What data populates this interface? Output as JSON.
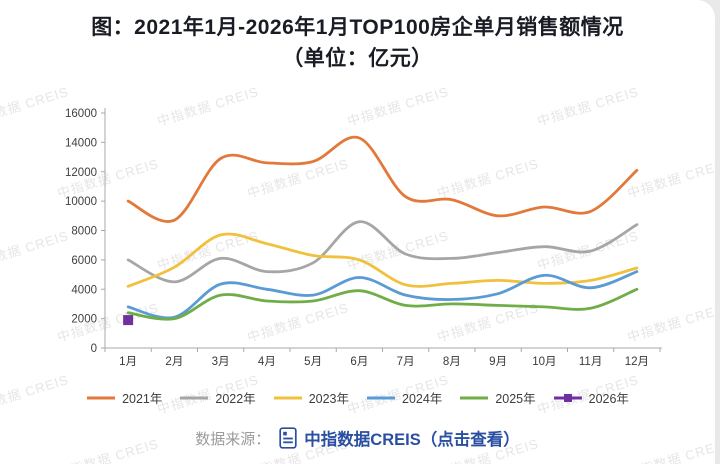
{
  "card": {
    "title_line1": "图：2021年1月-2026年1月TOP100房企单月销售额情况",
    "title_line2": "（单位：亿元）"
  },
  "watermark": {
    "text": "中指数据 CREIS"
  },
  "footer": {
    "source_label": "数据来源：",
    "link_text": "中指数据CREIS（点击查看）",
    "link_color": "#2a4fa2",
    "icon": "document-icon"
  },
  "chart_data": {
    "type": "line",
    "title": "2021年1月-2026年1月TOP100房企单月销售额情况",
    "unit": "亿元",
    "xlabel": "",
    "ylabel": "",
    "ylim": [
      0,
      16000
    ],
    "ytick_step": 2000,
    "grid": false,
    "legend_position": "bottom",
    "categories": [
      "1月",
      "2月",
      "3月",
      "4月",
      "5月",
      "6月",
      "7月",
      "8月",
      "9月",
      "10月",
      "11月",
      "12月"
    ],
    "series": [
      {
        "name": "2021年",
        "color": "#E2793A",
        "values": [
          10000,
          8700,
          12900,
          12600,
          12700,
          14300,
          10300,
          10100,
          9000,
          9600,
          9300,
          12100
        ]
      },
      {
        "name": "2022年",
        "color": "#A6A6A6",
        "values": [
          6000,
          4500,
          6100,
          5200,
          5800,
          8600,
          6400,
          6100,
          6500,
          6900,
          6600,
          8400
        ]
      },
      {
        "name": "2023年",
        "color": "#F1C13D",
        "values": [
          4200,
          5500,
          7700,
          7100,
          6300,
          6000,
          4300,
          4400,
          4600,
          4400,
          4600,
          5450
        ]
      },
      {
        "name": "2024年",
        "color": "#5B9BD5",
        "values": [
          2800,
          2100,
          4350,
          4000,
          3600,
          4800,
          3600,
          3300,
          3700,
          4950,
          4100,
          5200
        ]
      },
      {
        "name": "2025年",
        "color": "#70AD47",
        "values": [
          2400,
          2000,
          3600,
          3200,
          3200,
          3900,
          2900,
          3000,
          2900,
          2800,
          2700,
          4000
        ]
      },
      {
        "name": "2026年",
        "color": "#7030A0",
        "marker": "square",
        "values": [
          1900,
          null,
          null,
          null,
          null,
          null,
          null,
          null,
          null,
          null,
          null,
          null
        ]
      }
    ]
  }
}
